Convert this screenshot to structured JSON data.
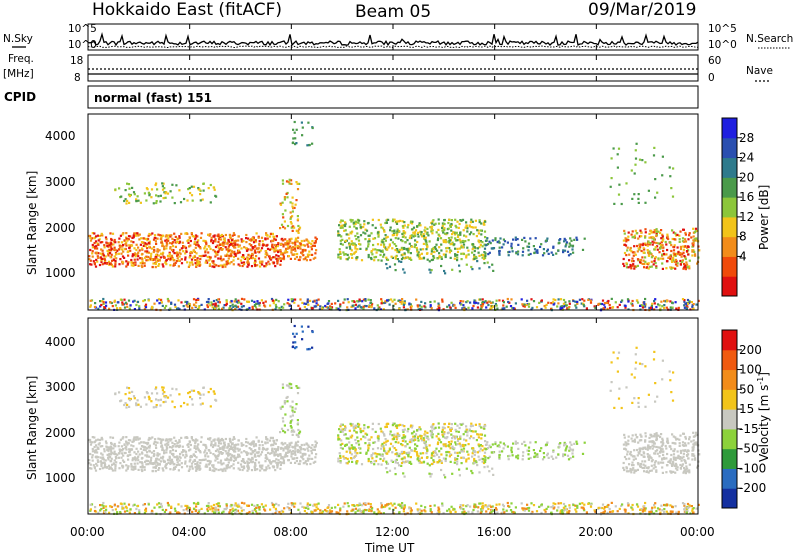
{
  "header": {
    "radar": "Hokkaido East (fitACF)",
    "beam": "Beam 05",
    "date": "09/Mar/2019"
  },
  "noise_panel": {
    "left_label": "N.Sky",
    "right_label": "N.Search",
    "ticks_left": [
      "10^5",
      "10^0"
    ],
    "ticks_right": [
      "10^5",
      "10^0"
    ]
  },
  "freq_panel": {
    "left_label_1": "Freq.",
    "left_label_2": "[MHz]",
    "left_ticks": [
      "18",
      "8"
    ],
    "right_label": "Nave",
    "right_ticks": [
      "60",
      "0"
    ]
  },
  "cpid_panel": {
    "label": "CPID",
    "text": "normal (fast) 151"
  },
  "power_panel": {
    "ylabel": "Slant Range [km]",
    "colorbar_label": "Power [dB]",
    "colorbar_ticks": [
      "28",
      "24",
      "20",
      "16",
      "12",
      "8",
      "4"
    ]
  },
  "velocity_panel": {
    "ylabel": "Slant Range [km]",
    "colorbar_label": "Velocity [m s",
    "colorbar_label_sup": "-1",
    "colorbar_label_end": "]",
    "colorbar_ticks": [
      "200",
      "100",
      "50",
      "15",
      "-15",
      "-50",
      "-100",
      "-200"
    ]
  },
  "x_axis": {
    "label": "Time UT",
    "ticks": [
      "00:00",
      "04:00",
      "08:00",
      "12:00",
      "16:00",
      "20:00",
      "00:00"
    ]
  },
  "y_axis_ticks": [
    "4000",
    "3000",
    "2000",
    "1000"
  ],
  "chart_data": {
    "type": "heatmap",
    "x_range_hours": [
      0,
      24
    ],
    "y_range_km": [
      180,
      4500
    ],
    "power_colors": [
      "#1f1fe0",
      "#2a4fb0",
      "#2e7a8c",
      "#4a9a4a",
      "#8cc63a",
      "#f2c41a",
      "#f28c1a",
      "#f04a0a",
      "#e01010"
    ],
    "velocity_colors": [
      "#1430a0",
      "#2a6cc0",
      "#2e9a3a",
      "#8cd23a",
      "#c8c8c0",
      "#f2c41a",
      "#f28c1a",
      "#f05a10",
      "#e01010"
    ]
  }
}
